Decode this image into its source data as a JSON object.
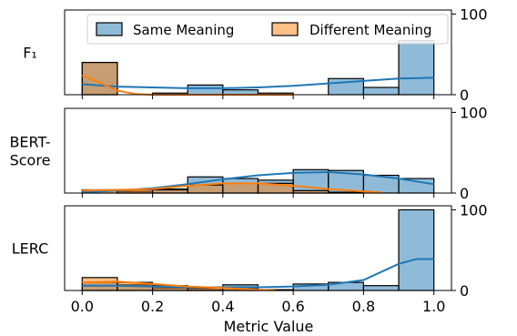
{
  "chart_data": {
    "type": "bar",
    "xlabel": "Metric Value",
    "x_ticks": [
      "0.0",
      "0.2",
      "0.4",
      "0.6",
      "0.8",
      "1.0"
    ],
    "xlim": [
      -0.05,
      1.05
    ],
    "bins": [
      0.0,
      0.1,
      0.2,
      0.3,
      0.4,
      0.5,
      0.6,
      0.7,
      0.8,
      0.9,
      1.0
    ],
    "ylim": [
      0,
      105
    ],
    "y_ticks": [
      "0",
      "100"
    ],
    "y_axis_side": "right",
    "legend": {
      "placement": "top",
      "entries": [
        "Same Meaning",
        "Different Meaning"
      ]
    },
    "colors": {
      "same": "#1f77b4",
      "different": "#ff7f0e"
    },
    "panels": [
      {
        "label": "F₁",
        "series": [
          {
            "name": "Same Meaning",
            "values": [
              40,
              0,
              2,
              12,
              6,
              2,
              0,
              20,
              9,
              67
            ]
          },
          {
            "name": "Different Meaning",
            "values": [
              40,
              0,
              0,
              0,
              0,
              0,
              0,
              0,
              0,
              0
            ]
          }
        ],
        "kde": {
          "same": [
            [
              0.0,
              13
            ],
            [
              0.1,
              10
            ],
            [
              0.2,
              9
            ],
            [
              0.3,
              8
            ],
            [
              0.4,
              8
            ],
            [
              0.5,
              9
            ],
            [
              0.6,
              11
            ],
            [
              0.7,
              14
            ],
            [
              0.8,
              17
            ],
            [
              0.9,
              20
            ],
            [
              1.0,
              21
            ]
          ],
          "different": [
            [
              0.0,
              24
            ],
            [
              0.05,
              15
            ],
            [
              0.1,
              5
            ],
            [
              0.15,
              1
            ],
            [
              0.2,
              0
            ],
            [
              0.4,
              0
            ],
            [
              0.6,
              0
            ]
          ]
        }
      },
      {
        "label": "BERT-\nScore",
        "series": [
          {
            "name": "Same Meaning",
            "values": [
              0,
              2,
              5,
              20,
              18,
              16,
              29,
              28,
              22,
              18
            ]
          },
          {
            "name": "Different Meaning",
            "values": [
              4,
              4,
              4,
              10,
              12,
              12,
              3,
              1,
              0,
              0
            ]
          }
        ],
        "kde": {
          "same": [
            [
              0.0,
              1
            ],
            [
              0.1,
              3
            ],
            [
              0.2,
              6
            ],
            [
              0.3,
              11
            ],
            [
              0.4,
              17
            ],
            [
              0.5,
              22
            ],
            [
              0.6,
              25
            ],
            [
              0.7,
              26
            ],
            [
              0.8,
              23
            ],
            [
              0.9,
              18
            ],
            [
              1.0,
              11
            ]
          ],
          "different": [
            [
              0.0,
              3
            ],
            [
              0.1,
              4
            ],
            [
              0.2,
              5
            ],
            [
              0.3,
              9
            ],
            [
              0.4,
              12
            ],
            [
              0.5,
              12
            ],
            [
              0.6,
              9
            ],
            [
              0.7,
              5
            ],
            [
              0.8,
              2
            ],
            [
              0.85,
              1
            ]
          ]
        }
      },
      {
        "label": "LERC",
        "series": [
          {
            "name": "Same Meaning",
            "values": [
              10,
              7,
              3,
              1,
              7,
              0,
              8,
              10,
              6,
              100
            ]
          },
          {
            "name": "Different Meaning",
            "values": [
              16,
              10,
              6,
              3,
              3,
              1,
              0,
              0,
              0,
              0
            ]
          }
        ],
        "kde": {
          "same": [
            [
              0.0,
              6
            ],
            [
              0.1,
              6
            ],
            [
              0.2,
              5
            ],
            [
              0.3,
              4
            ],
            [
              0.4,
              4
            ],
            [
              0.5,
              4
            ],
            [
              0.6,
              5
            ],
            [
              0.7,
              7
            ],
            [
              0.8,
              13
            ],
            [
              0.9,
              33
            ],
            [
              0.95,
              39
            ],
            [
              1.0,
              39
            ]
          ],
          "different": [
            [
              0.0,
              10
            ],
            [
              0.1,
              11
            ],
            [
              0.2,
              8
            ],
            [
              0.3,
              5
            ],
            [
              0.4,
              3
            ],
            [
              0.5,
              1
            ],
            [
              0.55,
              0
            ]
          ]
        }
      }
    ]
  }
}
